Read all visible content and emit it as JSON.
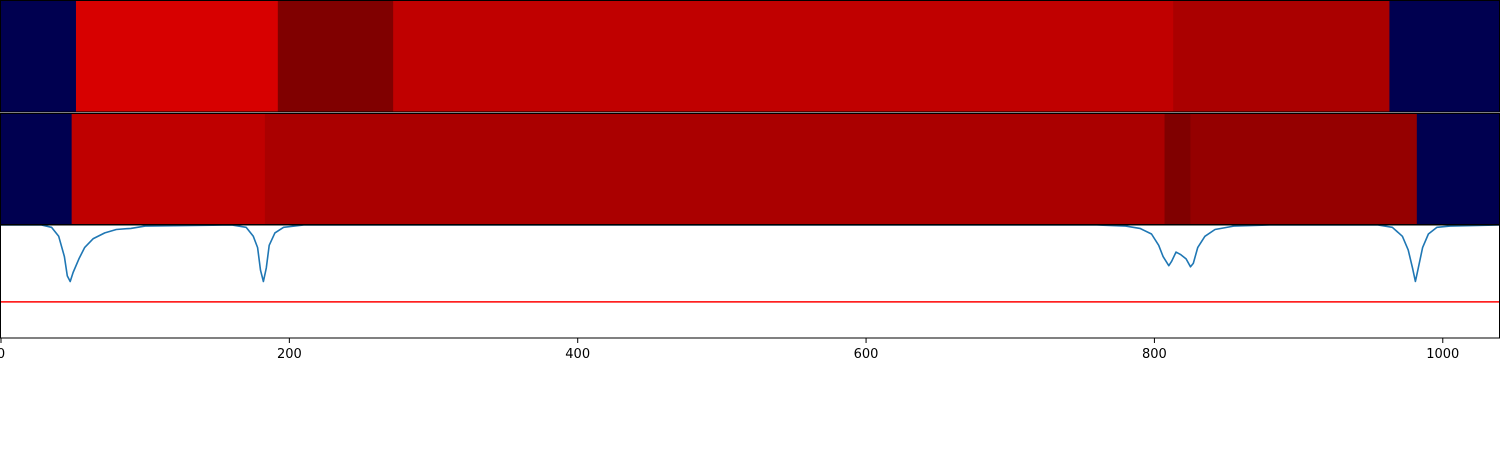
{
  "chart_data": [
    {
      "type": "heatmap",
      "row": "top",
      "xlim": [
        0,
        1039
      ],
      "segments": [
        {
          "x0": 0,
          "x1": 52,
          "color": "#000050"
        },
        {
          "x0": 52,
          "x1": 192,
          "color": "#d70000"
        },
        {
          "x0": 192,
          "x1": 272,
          "color": "#800000"
        },
        {
          "x0": 272,
          "x1": 813,
          "color": "#c00000"
        },
        {
          "x0": 813,
          "x1": 963,
          "color": "#aa0000"
        },
        {
          "x0": 963,
          "x1": 1039,
          "color": "#000050"
        }
      ]
    },
    {
      "type": "heatmap",
      "row": "middle",
      "xlim": [
        0,
        1039
      ],
      "segments": [
        {
          "x0": 0,
          "x1": 49,
          "color": "#000050"
        },
        {
          "x0": 49,
          "x1": 183,
          "color": "#bf0000"
        },
        {
          "x0": 183,
          "x1": 807,
          "color": "#aa0000"
        },
        {
          "x0": 807,
          "x1": 825,
          "color": "#800000"
        },
        {
          "x0": 825,
          "x1": 982,
          "color": "#950000"
        },
        {
          "x0": 982,
          "x1": 1039,
          "color": "#000050"
        }
      ]
    },
    {
      "type": "line",
      "xlim": [
        0,
        1039
      ],
      "ylim": [
        0,
        1
      ],
      "series": [
        {
          "color": "#1f77b4",
          "points": [
            [
              0,
              1.0
            ],
            [
              28,
              1.0
            ],
            [
              35,
              0.98
            ],
            [
              40,
              0.9
            ],
            [
              44,
              0.72
            ],
            [
              46,
              0.55
            ],
            [
              48,
              0.5
            ],
            [
              50,
              0.58
            ],
            [
              54,
              0.7
            ],
            [
              58,
              0.8
            ],
            [
              64,
              0.88
            ],
            [
              72,
              0.93
            ],
            [
              80,
              0.96
            ],
            [
              90,
              0.97
            ],
            [
              100,
              0.99
            ],
            [
              160,
              1.0
            ],
            [
              170,
              0.98
            ],
            [
              175,
              0.9
            ],
            [
              178,
              0.8
            ],
            [
              180,
              0.6
            ],
            [
              182,
              0.5
            ],
            [
              184,
              0.62
            ],
            [
              186,
              0.82
            ],
            [
              190,
              0.93
            ],
            [
              196,
              0.98
            ],
            [
              210,
              1.0
            ],
            [
              760,
              1.0
            ],
            [
              780,
              0.99
            ],
            [
              790,
              0.97
            ],
            [
              798,
              0.92
            ],
            [
              803,
              0.82
            ],
            [
              806,
              0.72
            ],
            [
              810,
              0.64
            ],
            [
              812,
              0.68
            ],
            [
              815,
              0.76
            ],
            [
              818,
              0.74
            ],
            [
              822,
              0.7
            ],
            [
              825,
              0.63
            ],
            [
              827,
              0.66
            ],
            [
              830,
              0.8
            ],
            [
              835,
              0.9
            ],
            [
              842,
              0.96
            ],
            [
              855,
              0.99
            ],
            [
              880,
              1.0
            ],
            [
              955,
              1.0
            ],
            [
              965,
              0.98
            ],
            [
              972,
              0.9
            ],
            [
              976,
              0.78
            ],
            [
              979,
              0.62
            ],
            [
              981,
              0.5
            ],
            [
              983,
              0.62
            ],
            [
              986,
              0.8
            ],
            [
              990,
              0.92
            ],
            [
              996,
              0.98
            ],
            [
              1005,
              0.99
            ],
            [
              1039,
              1.0
            ]
          ]
        }
      ],
      "reference_lines": [
        {
          "orientation": "horizontal",
          "y": 0.32,
          "color": "#ff0000"
        }
      ]
    }
  ],
  "x_axis": {
    "ticks": [
      0,
      200,
      400,
      600,
      800,
      1000
    ],
    "tick_labels": [
      "0",
      "200",
      "400",
      "600",
      "800",
      "1000"
    ]
  }
}
